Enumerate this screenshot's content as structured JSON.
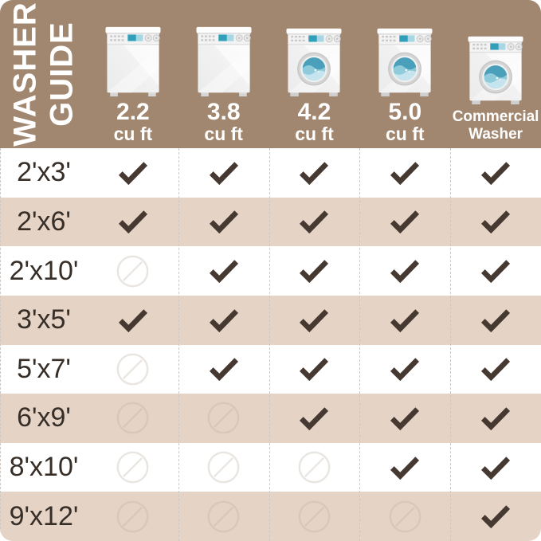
{
  "theme": {
    "header_bg": "#a1876f",
    "row_bg": "#ffffff",
    "row_alt_bg": "#e5d4c6",
    "check_color": "#463931",
    "no_white_color": "#e9e6e2",
    "no_alt_color": "#d8c8ba",
    "label_color": "#362e27",
    "divider_color": "#ccc8c3",
    "title_color": "#ffffff",
    "display_blue_dark": "#2f9fba",
    "display_blue_light": "#a5d8e4",
    "water_dark": "#4aa0ba",
    "water_mid": "#8fcbdb",
    "water_light": "#c5e4ed"
  },
  "header": {
    "title_line1": "WASHER",
    "title_line2": "GUIDE",
    "columns": [
      {
        "primary": "2.2",
        "secondary": "cu ft",
        "style": "size",
        "icon": "top-load-washer-icon"
      },
      {
        "primary": "3.8",
        "secondary": "cu ft",
        "style": "size",
        "icon": "top-load-washer-icon"
      },
      {
        "primary": "4.2",
        "secondary": "cu ft",
        "style": "size",
        "icon": "front-load-washer-icon"
      },
      {
        "primary": "5.0",
        "secondary": "cu ft",
        "style": "size",
        "icon": "front-load-washer-icon"
      },
      {
        "primary": "Commercial",
        "secondary": "Washer",
        "style": "text",
        "icon": "front-load-washer-icon"
      }
    ]
  },
  "table": {
    "rows": [
      {
        "label": "2'x3'",
        "marks": [
          "check",
          "check",
          "check",
          "check",
          "check"
        ]
      },
      {
        "label": "2'x6'",
        "marks": [
          "check",
          "check",
          "check",
          "check",
          "check"
        ]
      },
      {
        "label": "2'x10'",
        "marks": [
          "no",
          "check",
          "check",
          "check",
          "check"
        ]
      },
      {
        "label": "3'x5'",
        "marks": [
          "check",
          "check",
          "check",
          "check",
          "check"
        ]
      },
      {
        "label": "5'x7'",
        "marks": [
          "no",
          "check",
          "check",
          "check",
          "check"
        ]
      },
      {
        "label": "6'x9'",
        "marks": [
          "no",
          "no",
          "check",
          "check",
          "check"
        ]
      },
      {
        "label": "8'x10'",
        "marks": [
          "no",
          "no",
          "no",
          "check",
          "check"
        ]
      },
      {
        "label": "9'x12'",
        "marks": [
          "no",
          "no",
          "no",
          "no",
          "check"
        ]
      }
    ]
  },
  "chart_data": {
    "type": "table",
    "title": "WASHER GUIDE",
    "columns": [
      "2.2 cu ft",
      "3.8 cu ft",
      "4.2 cu ft",
      "5.0 cu ft",
      "Commercial Washer"
    ],
    "row_labels": [
      "2'x3'",
      "2'x6'",
      "2'x10'",
      "3'x5'",
      "5'x7'",
      "6'x9'",
      "8'x10'",
      "9'x12'"
    ],
    "values": [
      [
        1,
        1,
        1,
        1,
        1
      ],
      [
        1,
        1,
        1,
        1,
        1
      ],
      [
        0,
        1,
        1,
        1,
        1
      ],
      [
        1,
        1,
        1,
        1,
        1
      ],
      [
        0,
        1,
        1,
        1,
        1
      ],
      [
        0,
        0,
        1,
        1,
        1
      ],
      [
        0,
        0,
        0,
        1,
        1
      ],
      [
        0,
        0,
        0,
        0,
        1
      ]
    ],
    "legend": {
      "1": "check (fits)",
      "0": "crossed-circle (does not fit)"
    }
  }
}
